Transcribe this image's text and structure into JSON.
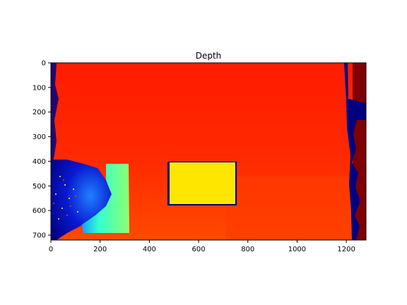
{
  "figure": {
    "title": "Depth",
    "image_kind": "depth map (jet colormap)",
    "colormap": [
      "#00007f",
      "#0000ff",
      "#00ffff",
      "#ffff00",
      "#ff0000",
      "#7f0000"
    ],
    "colors": {
      "background_red": "#ff2200",
      "lower_orange": "#ff4a00",
      "lower_right_deep_orange": "#f03c00",
      "far_right_dark_red": "#7f0000",
      "noise_navy": "#00007f",
      "yellow_box": "#ffe600",
      "cyan_box": "#3fffb4",
      "blue_box": "#1040ff"
    },
    "x_axis": {
      "range": [
        0,
        1280
      ],
      "ticks": [
        "0",
        "200",
        "400",
        "600",
        "800",
        "1000",
        "1200"
      ]
    },
    "y_axis": {
      "range": [
        0,
        720
      ],
      "inverted": true,
      "ticks": [
        "0",
        "100",
        "200",
        "300",
        "400",
        "500",
        "600",
        "700"
      ]
    }
  }
}
